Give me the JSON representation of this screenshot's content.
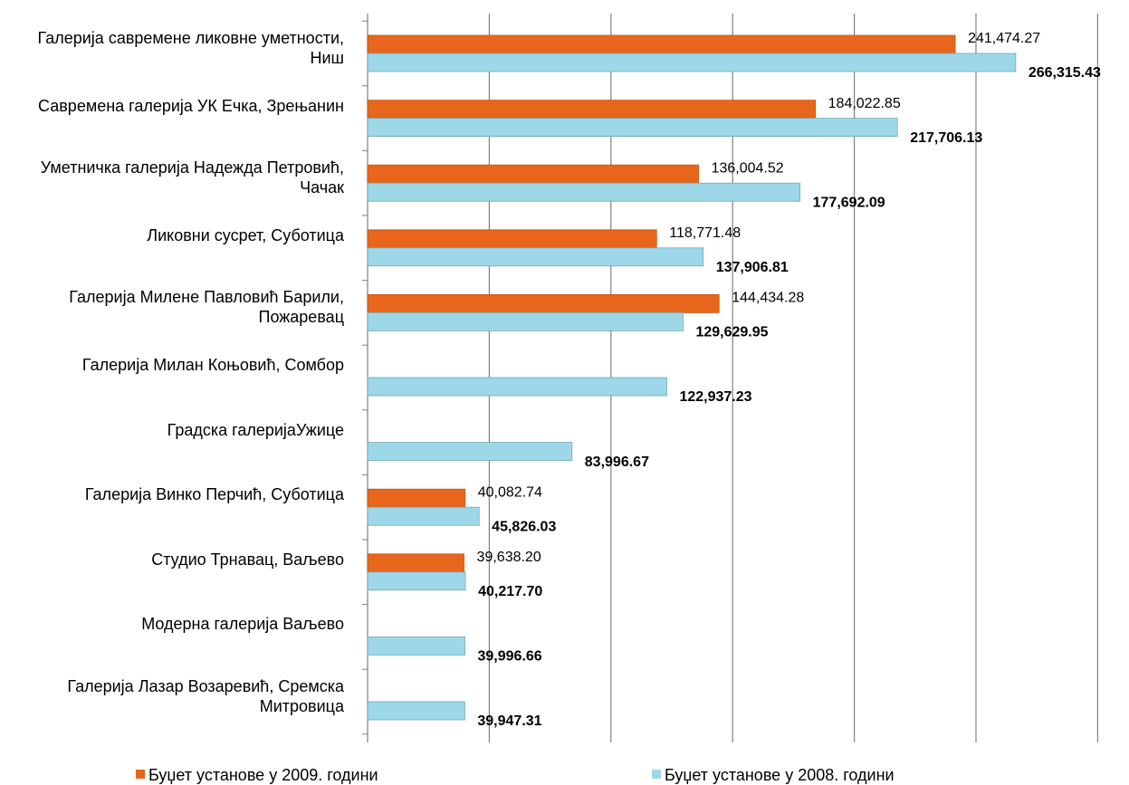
{
  "chart_data": {
    "type": "bar",
    "orientation": "horizontal",
    "categories": [
      "Галерија савремене ликовне уметности, Ниш",
      "Савремена галерија УК Ечка, Зрењанин",
      "Уметничка галерија Надежда Петровић, Чачак",
      "Ликовни сусрет, Суботица",
      "Галерија Милене Павловић Барили, Пожаревац",
      "Галерија Милан Коњовић, Сомбор",
      "Градска галеријаУжице",
      "Галерија Винко Перчић, Суботица",
      "Студио Трнавац, Ваљево",
      "Модерна галерија Ваљево",
      "Галерија Лазар Возаревић, Сремска Митровица"
    ],
    "series": [
      {
        "name": "Буџет установе у 2009. години",
        "color": "#e8661c",
        "values": [
          241474.27,
          184022.85,
          136004.52,
          118771.48,
          144434.28,
          null,
          null,
          40082.74,
          39638.2,
          null,
          null
        ],
        "value_labels": [
          "241,474.27",
          "184,022.85",
          "136,004.52",
          "118,771.48",
          "144,434.28",
          null,
          null,
          "40,082.74",
          "39,638.20",
          null,
          null
        ]
      },
      {
        "name": "Буџет установе у 2008. години",
        "color": "#9ed8e8",
        "values": [
          266315.43,
          217706.13,
          177692.09,
          137906.81,
          129629.95,
          122937.23,
          83996.67,
          45826.03,
          40217.7,
          39996.66,
          39947.31
        ],
        "value_labels": [
          "266,315.43",
          "217,706.13",
          "177,692.09",
          "137,906.81",
          "129,629.95",
          "122,937.23",
          "83,996.67",
          "45,826.03",
          "40,217.70",
          "39,996.66",
          "39,947.31"
        ]
      }
    ],
    "xlim": [
      0,
      300000
    ],
    "xticks": [
      0,
      50000,
      100000,
      150000,
      200000,
      250000,
      300000
    ],
    "grid": true,
    "legend": "bottom"
  }
}
